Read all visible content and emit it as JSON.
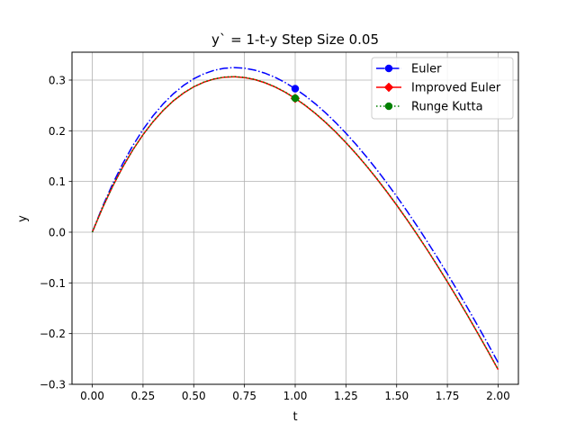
{
  "chart_data": {
    "type": "line",
    "title": "y` = 1-t-y Step Size 0.05",
    "xlabel": "t",
    "ylabel": "y",
    "xlim": [
      -0.1,
      2.1
    ],
    "ylim": [
      -0.3,
      0.355
    ],
    "xticks": [
      0.0,
      0.25,
      0.5,
      0.75,
      1.0,
      1.25,
      1.5,
      1.75,
      2.0
    ],
    "xtick_labels": [
      "0.00",
      "0.25",
      "0.50",
      "0.75",
      "1.00",
      "1.25",
      "1.50",
      "1.75",
      "2.00"
    ],
    "yticks": [
      -0.3,
      -0.2,
      -0.1,
      0.0,
      0.1,
      0.2,
      0.3
    ],
    "ytick_labels": [
      "−0.3",
      "−0.2",
      "−0.1",
      "0.0",
      "0.1",
      "0.2",
      "0.3"
    ],
    "grid": true,
    "legend_position": "upper right",
    "ode": "y' = 1 - t - y",
    "t0": 0,
    "y0": 0,
    "step": 0.05,
    "t_end": 2.0,
    "series": [
      {
        "name": "Euler",
        "method": "euler",
        "color": "#0000ff",
        "linestyle": "dashdot",
        "marker": "circle",
        "marker_at": 1.0
      },
      {
        "name": "Improved Euler",
        "method": "improved_euler",
        "color": "#ff0000",
        "linestyle": "solid",
        "marker": "diamond",
        "marker_at": 1.0
      },
      {
        "name": "Runge Kutta",
        "method": "rk4",
        "color": "#008000",
        "linestyle": "dotted",
        "marker": "circle",
        "marker_at": 1.0
      }
    ]
  }
}
